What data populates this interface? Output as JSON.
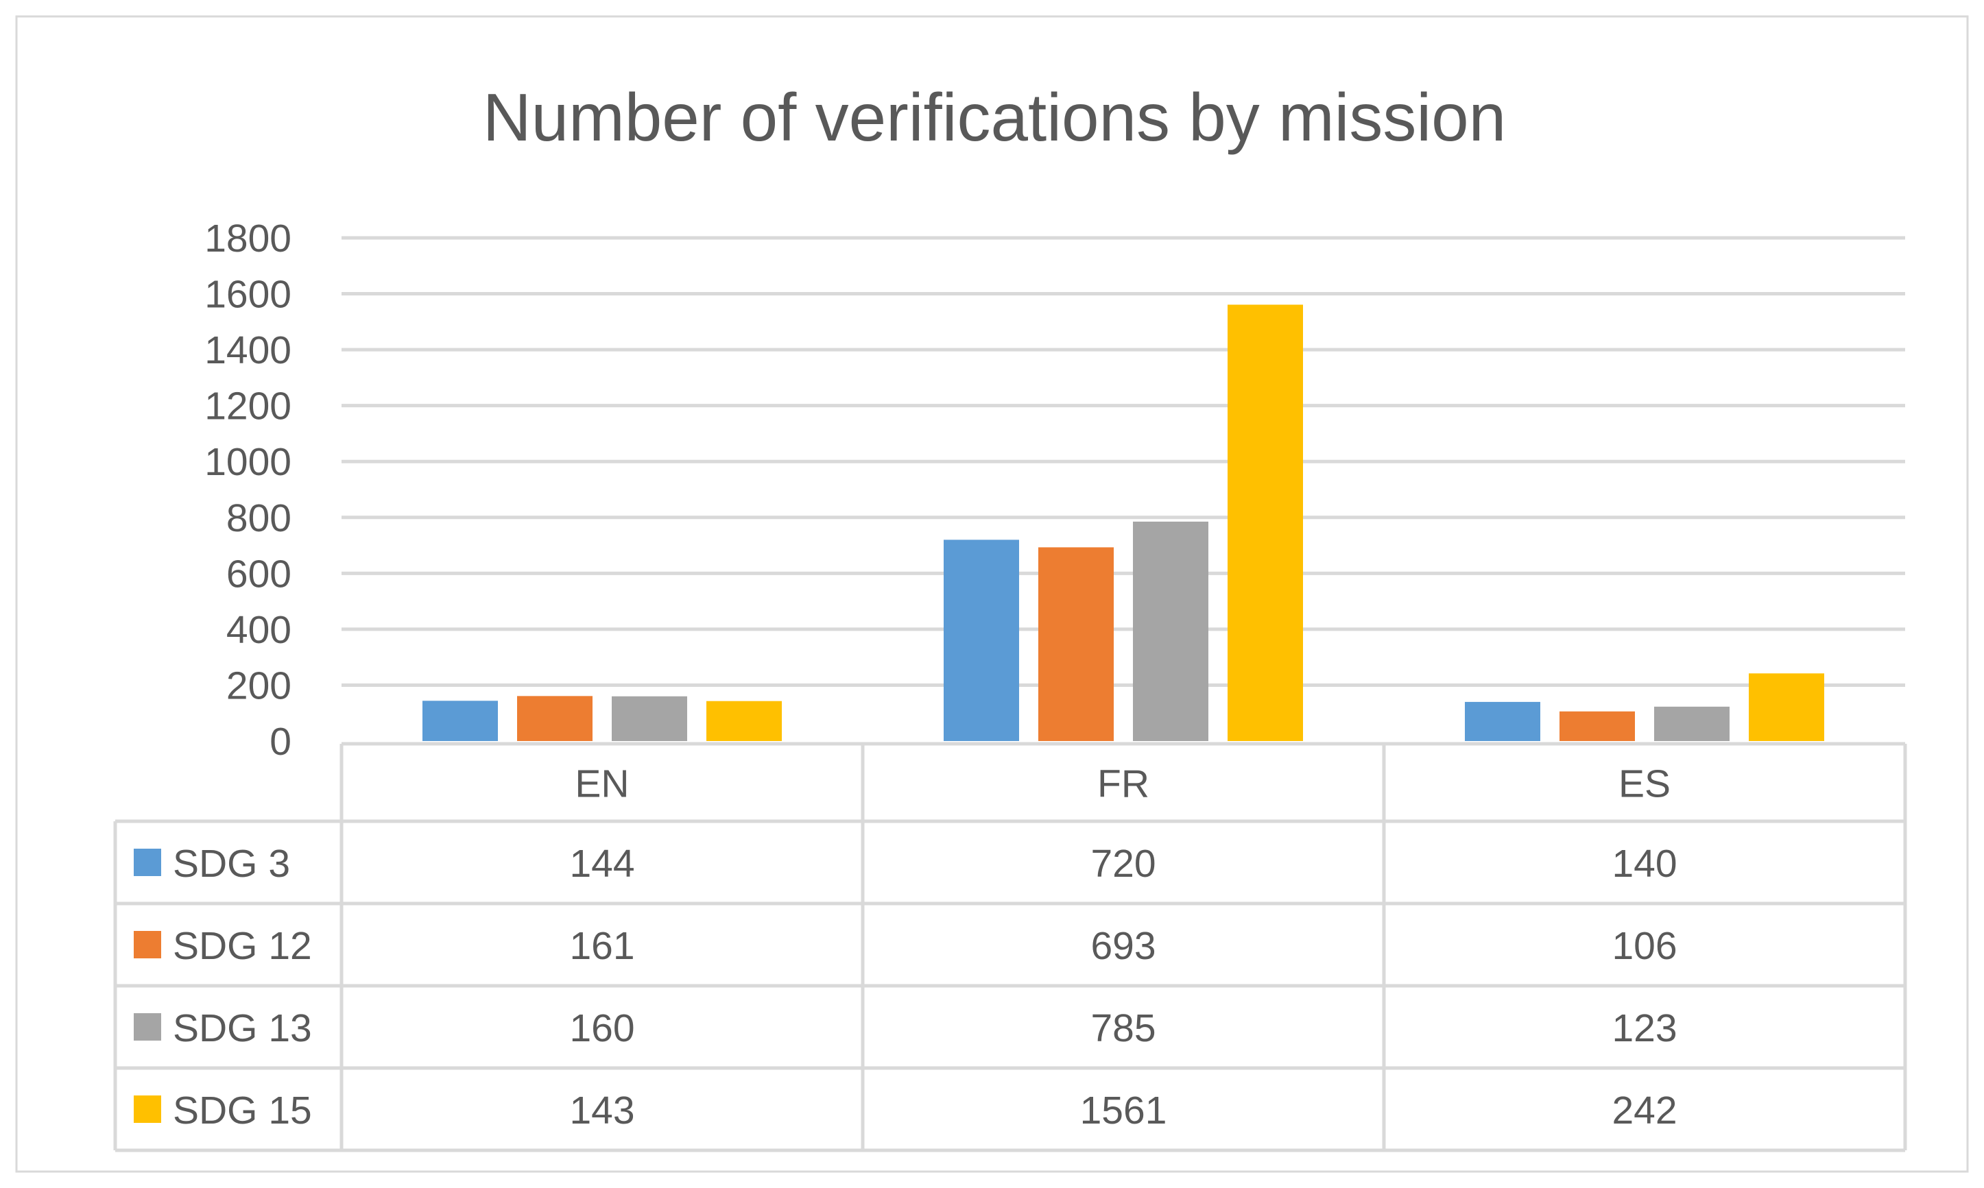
{
  "chart_data": {
    "type": "bar",
    "title": "Number of verifications by mission",
    "categories": [
      "EN",
      "FR",
      "ES"
    ],
    "series": [
      {
        "name": "SDG 3",
        "values": [
          144,
          720,
          140
        ],
        "color": "#5B9BD5"
      },
      {
        "name": "SDG 12",
        "values": [
          161,
          693,
          106
        ],
        "color": "#ED7D31"
      },
      {
        "name": "SDG 13",
        "values": [
          160,
          785,
          123
        ],
        "color": "#A5A5A5"
      },
      {
        "name": "SDG 15",
        "values": [
          143,
          1561,
          242
        ],
        "color": "#FFC000"
      }
    ],
    "ylim": [
      0,
      1800
    ],
    "yticks": [
      0,
      200,
      400,
      600,
      800,
      1000,
      1200,
      1400,
      1600,
      1800
    ],
    "grid": true,
    "legend": "data-table",
    "data_table": true
  }
}
